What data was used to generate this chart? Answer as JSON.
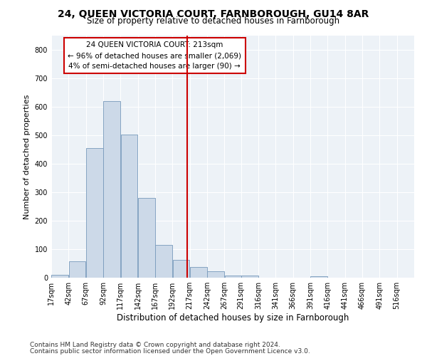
{
  "title1": "24, QUEEN VICTORIA COURT, FARNBOROUGH, GU14 8AR",
  "title2": "Size of property relative to detached houses in Farnborough",
  "xlabel": "Distribution of detached houses by size in Farnborough",
  "ylabel": "Number of detached properties",
  "bar_color": "#ccd9e8",
  "bar_edge_color": "#7799bb",
  "bins": [
    17,
    42,
    67,
    92,
    117,
    142,
    167,
    192,
    217,
    242,
    267,
    291,
    316,
    341,
    366,
    391,
    416,
    441,
    466,
    491,
    516
  ],
  "bar_heights": [
    11,
    57,
    454,
    620,
    503,
    280,
    115,
    63,
    37,
    22,
    8,
    7,
    0,
    0,
    0,
    5,
    0,
    0,
    0,
    0
  ],
  "vline_x": 213,
  "vline_color": "#cc0000",
  "annotation_line1": "24 QUEEN VICTORIA COURT: 213sqm",
  "annotation_line2": "← 96% of detached houses are smaller (2,069)",
  "annotation_line3": "4% of semi-detached houses are larger (90) →",
  "annotation_box_color": "#ffffff",
  "annotation_box_edge": "#cc0000",
  "ylim": [
    0,
    850
  ],
  "yticks": [
    0,
    100,
    200,
    300,
    400,
    500,
    600,
    700,
    800
  ],
  "tick_labels": [
    "17sqm",
    "42sqm",
    "67sqm",
    "92sqm",
    "117sqm",
    "142sqm",
    "167sqm",
    "192sqm",
    "217sqm",
    "242sqm",
    "267sqm",
    "291sqm",
    "316sqm",
    "341sqm",
    "366sqm",
    "391sqm",
    "416sqm",
    "441sqm",
    "466sqm",
    "491sqm",
    "516sqm"
  ],
  "bg_color": "#edf2f7",
  "footer1": "Contains HM Land Registry data © Crown copyright and database right 2024.",
  "footer2": "Contains public sector information licensed under the Open Government Licence v3.0.",
  "title1_fontsize": 10,
  "title2_fontsize": 8.5,
  "xlabel_fontsize": 8.5,
  "ylabel_fontsize": 8,
  "tick_fontsize": 7,
  "footer_fontsize": 6.5,
  "annotation_fontsize": 7.5
}
